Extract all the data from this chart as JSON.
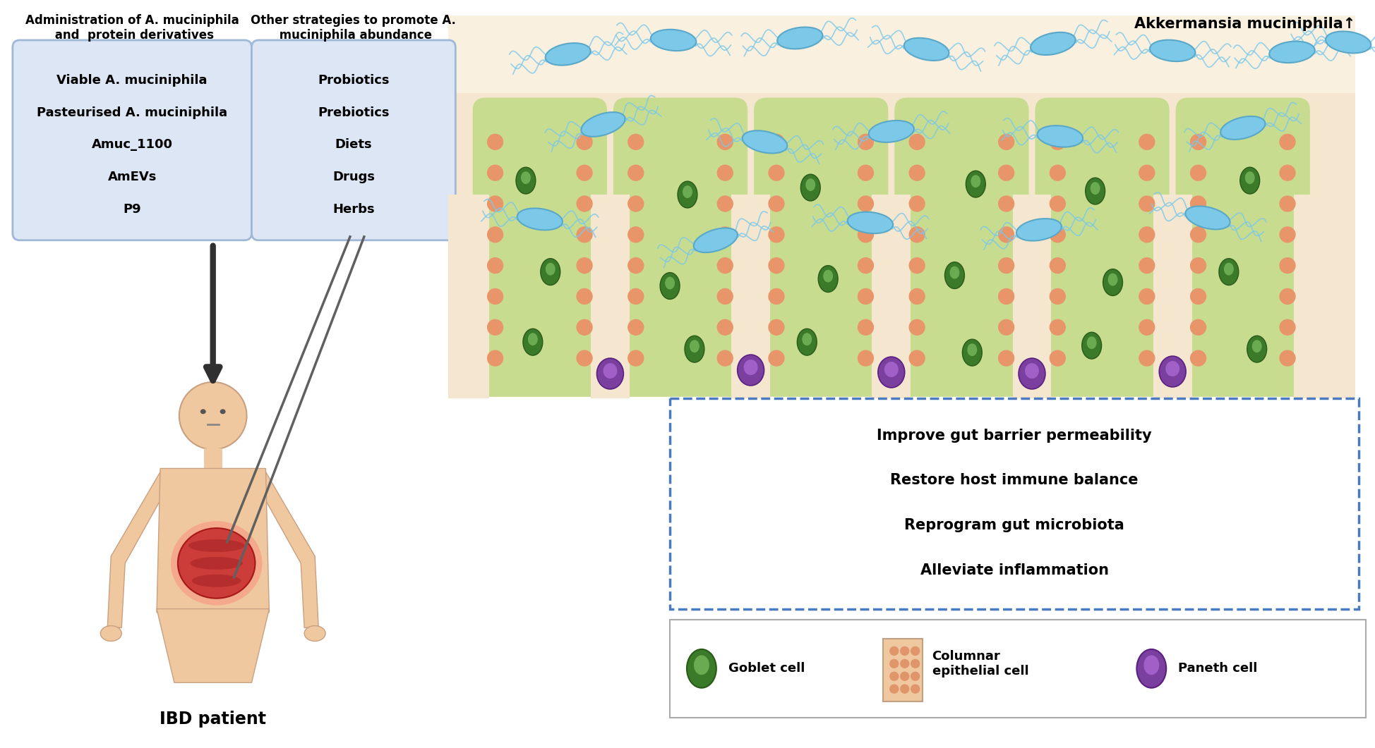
{
  "fig_width": 19.49,
  "fig_height": 10.61,
  "background_color": "#ffffff",
  "box1_title": "Administration of A. muciniphila\n and  protein derivatives",
  "box1_items": [
    "Viable A. muciniphila",
    "Pasteurised A. muciniphila",
    "Amuc_1100",
    "AmEVs",
    "P9"
  ],
  "box1_bg": "#dce6f5",
  "box1_border": "#a0b8d8",
  "box2_title": "Other strategies to promote A.\n muciniphila abundance",
  "box2_items": [
    "Probiotics",
    "Prebiotics",
    "Diets",
    "Drugs",
    "Herbs"
  ],
  "box2_bg": "#dce6f5",
  "box2_border": "#a0b8d8",
  "akkermansia_label": "Akkermansia muciniphila↑",
  "effects_items": [
    "Improve gut barrier permeability",
    "Restore host immune balance",
    "Reprogram gut microbiota",
    "Alleviate inflammation"
  ],
  "ibd_label": "IBD patient",
  "colors": {
    "black": "#000000",
    "light_blue_box": "#dce6f5",
    "border_blue": "#a0b8d8",
    "dashed_border": "#4a7abf",
    "gut_bg": "#f5e6d0",
    "mucus_green": "#c8dc90",
    "bacteria_blue": "#7bc8e8",
    "bacteria_border": "#5aa8c8",
    "ep_color": "#e8956a",
    "goblet_color": "#3a7a28",
    "goblet_border": "#2a5a18",
    "paneth_color": "#7b3fa0",
    "paneth_border": "#5a2080",
    "human_skin": "#f0c8a0",
    "human_skin_border": "#c8a080",
    "intestine_color": "#c83030",
    "intestine_border": "#a01010",
    "arrow_color": "#303030",
    "line_color": "#606060"
  }
}
